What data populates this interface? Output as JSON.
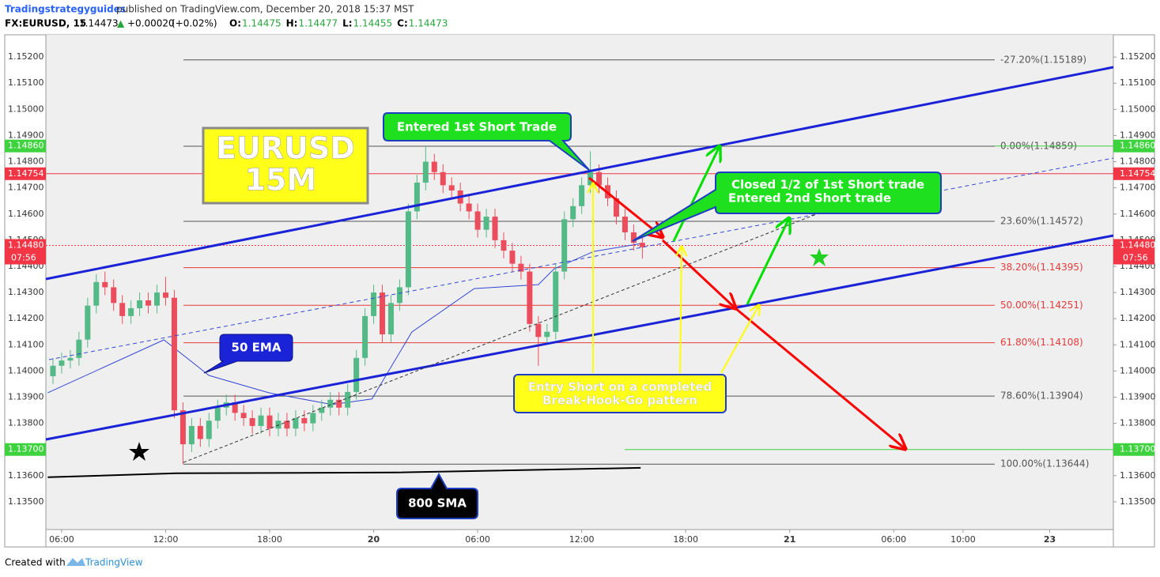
{
  "header": {
    "author": "Tradingstrategyguides",
    "published": "published on TradingView.com, December 20, 2018 15:37 MST",
    "symbol": "FX:EURUSD, 15",
    "last": 1.14473,
    "change_arrow": "▲",
    "change": "+0.00020",
    "change_pct": "(+0.02%)",
    "ohlc": [
      {
        "key": "O:",
        "value": 1.14475
      },
      {
        "key": "H:",
        "value": 1.14477
      },
      {
        "key": "L:",
        "value": 1.14455
      },
      {
        "key": "C:",
        "value": 1.14473
      }
    ]
  },
  "footer": {
    "created": "Created with",
    "brand": "TradingView"
  },
  "chart_data": {
    "type": "candlestick",
    "xlim": [
      5.09,
      66.67
    ],
    "xticks": [
      {
        "value": 6,
        "label": "06:00"
      },
      {
        "value": 12,
        "label": "12:00"
      },
      {
        "value": 18,
        "label": "18:00"
      },
      {
        "value": 24,
        "label": "20"
      },
      {
        "value": 30,
        "label": "06:00"
      },
      {
        "value": 36,
        "label": "12:00"
      },
      {
        "value": 42,
        "label": "18:00"
      },
      {
        "value": 48,
        "label": "21"
      },
      {
        "value": 54,
        "label": "06:00"
      },
      {
        "value": 58,
        "label": "10:00"
      },
      {
        "value": 63,
        "label": "23"
      }
    ],
    "ylim": [
      1.13394,
      1.15285
    ],
    "yticks": [
      {
        "value": 1.135,
        "label": "1.13500"
      },
      {
        "value": 1.136,
        "label": "1.13600"
      },
      {
        "value": 1.137,
        "label": "1.13700"
      },
      {
        "value": 1.138,
        "label": "1.13800"
      },
      {
        "value": 1.139,
        "label": "1.13900"
      },
      {
        "value": 1.14,
        "label": "1.14000"
      },
      {
        "value": 1.141,
        "label": "1.14100"
      },
      {
        "value": 1.142,
        "label": "1.14200"
      },
      {
        "value": 1.143,
        "label": "1.14300"
      },
      {
        "value": 1.144,
        "label": "1.14400"
      },
      {
        "value": 1.145,
        "label": "1.14500"
      },
      {
        "value": 1.146,
        "label": "1.14600"
      },
      {
        "value": 1.147,
        "label": "1.14700"
      },
      {
        "value": 1.148,
        "label": "1.14800"
      },
      {
        "value": 1.149,
        "label": "1.14900"
      },
      {
        "value": 1.15,
        "label": "1.15000"
      },
      {
        "value": 1.151,
        "label": "1.15100"
      },
      {
        "value": 1.152,
        "label": "1.15200"
      }
    ],
    "series": [
      {
        "name": "EURUSD",
        "up_color": "#53b987",
        "down_color": "#eb4d5c",
        "x": [
          5.5,
          6,
          6.5,
          7,
          7.5,
          8,
          8.5,
          9,
          9.5,
          10,
          10.5,
          11,
          11.5,
          12,
          12.5,
          13,
          13.5,
          14,
          14.5,
          15,
          15.5,
          16,
          16.5,
          17,
          17.5,
          18,
          18.5,
          19,
          19.5,
          20,
          20.5,
          21,
          21.5,
          22,
          22.5,
          23,
          23.5,
          24,
          24.5,
          25,
          25.5,
          26,
          26.5,
          27,
          27.5,
          28,
          28.5,
          29,
          29.5,
          30,
          30.5,
          31,
          31.5,
          32,
          32.5,
          33,
          33.5,
          34,
          34.5,
          35,
          35.5,
          36,
          36.5,
          37,
          37.5,
          38,
          38.5,
          39,
          39.5
        ],
        "open": [
          1.1398,
          1.1402,
          1.1404,
          1.1405,
          1.1412,
          1.1425,
          1.1434,
          1.1432,
          1.1426,
          1.1421,
          1.1424,
          1.1427,
          1.1425,
          1.143,
          1.1428,
          1.1385,
          1.1372,
          1.1379,
          1.1374,
          1.1381,
          1.1386,
          1.1388,
          1.1384,
          1.1382,
          1.1379,
          1.1383,
          1.1378,
          1.1381,
          1.1378,
          1.1382,
          1.138,
          1.1384,
          1.1386,
          1.1389,
          1.1386,
          1.1392,
          1.1405,
          1.1421,
          1.143,
          1.1414,
          1.1426,
          1.1432,
          1.1461,
          1.1472,
          1.148,
          1.1476,
          1.1471,
          1.1469,
          1.1464,
          1.1461,
          1.1454,
          1.1459,
          1.145,
          1.1446,
          1.1441,
          1.1438,
          1.1418,
          1.1413,
          1.1415,
          1.1438,
          1.1458,
          1.1463,
          1.1471,
          1.1476,
          1.1471,
          1.1466,
          1.1459,
          1.1453,
          1.1449
        ],
        "high": [
          1.1405,
          1.1407,
          1.1408,
          1.1415,
          1.1428,
          1.1437,
          1.1438,
          1.1435,
          1.1429,
          1.1427,
          1.143,
          1.143,
          1.1433,
          1.1436,
          1.1431,
          1.1388,
          1.1382,
          1.1382,
          1.1384,
          1.1389,
          1.1391,
          1.1391,
          1.1387,
          1.1385,
          1.1386,
          1.1386,
          1.1384,
          1.1384,
          1.1385,
          1.1385,
          1.1387,
          1.1389,
          1.1392,
          1.1392,
          1.1395,
          1.1408,
          1.1424,
          1.1433,
          1.1433,
          1.1429,
          1.1435,
          1.1464,
          1.1475,
          1.14859,
          1.1483,
          1.1479,
          1.1474,
          1.1472,
          1.1467,
          1.1464,
          1.1462,
          1.1462,
          1.1453,
          1.1449,
          1.1444,
          1.1441,
          1.1421,
          1.1418,
          1.1441,
          1.1461,
          1.1466,
          1.1474,
          1.1484,
          1.1479,
          1.1474,
          1.1469,
          1.1462,
          1.1456,
          1.1451
        ],
        "low": [
          1.1395,
          1.1399,
          1.1401,
          1.1402,
          1.1409,
          1.1422,
          1.1429,
          1.1423,
          1.1418,
          1.1418,
          1.1421,
          1.1422,
          1.1422,
          1.1425,
          1.1382,
          1.13644,
          1.1369,
          1.1371,
          1.1371,
          1.1378,
          1.1383,
          1.1381,
          1.1379,
          1.1376,
          1.1376,
          1.1375,
          1.1375,
          1.1375,
          1.1375,
          1.1377,
          1.1377,
          1.1381,
          1.1383,
          1.1383,
          1.1383,
          1.1389,
          1.1402,
          1.1418,
          1.1411,
          1.1411,
          1.1423,
          1.1429,
          1.1458,
          1.1469,
          1.1473,
          1.1468,
          1.1466,
          1.1461,
          1.1458,
          1.1451,
          1.1451,
          1.1447,
          1.1443,
          1.1438,
          1.1435,
          1.1415,
          1.1402,
          1.141,
          1.1412,
          1.1435,
          1.1455,
          1.146,
          1.1468,
          1.1468,
          1.1463,
          1.1456,
          1.145,
          1.1446,
          1.1443
        ],
        "close": [
          1.1402,
          1.1404,
          1.1405,
          1.1412,
          1.1425,
          1.1434,
          1.1432,
          1.1426,
          1.1421,
          1.1424,
          1.1427,
          1.1425,
          1.143,
          1.1428,
          1.1385,
          1.1372,
          1.1379,
          1.1374,
          1.1381,
          1.1386,
          1.1388,
          1.1384,
          1.1382,
          1.1379,
          1.1383,
          1.1378,
          1.1381,
          1.1378,
          1.1382,
          1.138,
          1.1384,
          1.1386,
          1.1389,
          1.1386,
          1.1392,
          1.1405,
          1.1421,
          1.143,
          1.1414,
          1.1426,
          1.1432,
          1.1461,
          1.1472,
          1.148,
          1.1476,
          1.1471,
          1.1469,
          1.1464,
          1.1461,
          1.1454,
          1.1459,
          1.145,
          1.1446,
          1.1441,
          1.1438,
          1.1418,
          1.1413,
          1.1415,
          1.1438,
          1.1458,
          1.1463,
          1.1471,
          1.1476,
          1.1471,
          1.1466,
          1.1459,
          1.1453,
          1.1449,
          1.14473
        ]
      }
    ],
    "indicators": [
      {
        "color": "#3346d3",
        "x": [
          5.2,
          11.9,
          14.5,
          17.95,
          21.6,
          23.9,
          26.2,
          29.8,
          33.5,
          34.4,
          36.7,
          39.4
        ],
        "values": [
          1.13917,
          1.14119,
          1.13983,
          1.13917,
          1.13872,
          1.13893,
          1.14149,
          1.14315,
          1.1433,
          1.1439,
          1.14457,
          1.14487
        ]
      },
      {
        "color": "#000000",
        "x": [
          5.2,
          12.6,
          25.3,
          39.4
        ],
        "values": [
          1.13594,
          1.13609,
          1.13612,
          1.1363
        ]
      }
    ],
    "fib_levels": [
      {
        "value": 1.15189,
        "label": "-27.20%(1.15189)",
        "color": "#555555"
      },
      {
        "value": 1.14859,
        "label": "0.00%(1.14859)",
        "color": "#555555"
      },
      {
        "value": 1.14572,
        "label": "23.60%(1.14572)",
        "color": "#555555"
      },
      {
        "value": 1.14395,
        "label": "38.20%(1.14395)",
        "color": "#e83a3a"
      },
      {
        "value": 1.14251,
        "label": "50.00%(1.14251)",
        "color": "#e83a3a"
      },
      {
        "value": 1.14108,
        "label": "61.80%(1.14108)",
        "color": "#e83a3a"
      },
      {
        "value": 1.13904,
        "label": "78.60%(1.13904)",
        "color": "#555555"
      },
      {
        "value": 1.13644,
        "label": "100.00%(1.13644)",
        "color": "#555555"
      }
    ],
    "price_labels": [
      {
        "value": 1.1486,
        "label": "1.14860",
        "color": "#3fd23f"
      },
      {
        "value": 1.14754,
        "label": "1.14754",
        "color": "#f23645"
      },
      {
        "value": 1.1448,
        "label": "1.14480",
        "color": "#f23645"
      },
      {
        "value": 1.137,
        "label": "1.13700",
        "color": "#3fd23f"
      }
    ],
    "countdown": "07:56",
    "callouts": {
      "title": [
        "EURUSD",
        "15M"
      ],
      "entry1": [
        "Entered 1st Short Trade"
      ],
      "closed": [
        "Closed 1/2 of 1st Short trade",
        "Entered 2nd Short trade"
      ],
      "pattern": [
        "Entry Short on a completed",
        "Break-Hook-Go pattern"
      ],
      "ema": [
        "50 EMA"
      ],
      "sma": [
        "800 SMA"
      ]
    }
  }
}
